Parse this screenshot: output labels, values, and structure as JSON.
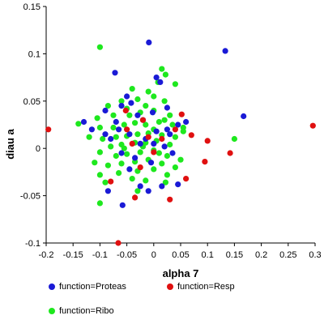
{
  "chart_data": {
    "type": "scatter",
    "xlabel": "alpha 7",
    "ylabel": "diau a",
    "xlim": [
      -0.2,
      0.3
    ],
    "ylim": [
      -0.1,
      0.15
    ],
    "xticks": [
      "-0.2",
      "-0.15",
      "-0.1",
      "-0.05",
      "0",
      "0.05",
      "0.1",
      "0.15",
      "0.2",
      "0.25",
      "0.3"
    ],
    "yticks": [
      "-0.1",
      "-0.05",
      "0",
      "0.05",
      "0.1",
      "0.15"
    ],
    "grid": false,
    "legend_position": "bottom",
    "series": [
      {
        "name": "function=Proteas",
        "color": "#1a1ad6",
        "points": [
          [
            -0.009,
            0.112
          ],
          [
            0.133,
            0.103
          ],
          [
            -0.072,
            0.08
          ],
          [
            -0.05,
            0.055
          ],
          [
            -0.06,
            0.045
          ],
          [
            -0.042,
            0.048
          ],
          [
            -0.09,
            0.04
          ],
          [
            0.005,
            0.075
          ],
          [
            0.012,
            0.07
          ],
          [
            0.025,
            0.043
          ],
          [
            -0.03,
            0.035
          ],
          [
            -0.002,
            0.038
          ],
          [
            0.167,
            0.034
          ],
          [
            -0.13,
            0.028
          ],
          [
            -0.115,
            0.02
          ],
          [
            -0.07,
            0.028
          ],
          [
            -0.02,
            0.03
          ],
          [
            0.025,
            0.02
          ],
          [
            0.045,
            0.025
          ],
          [
            0.06,
            0.028
          ],
          [
            -0.09,
            0.015
          ],
          [
            -0.065,
            0.02
          ],
          [
            -0.045,
            0.015
          ],
          [
            -0.015,
            0.01
          ],
          [
            0.005,
            0.018
          ],
          [
            0.03,
            0.015
          ],
          [
            -0.08,
            0.01
          ],
          [
            -0.025,
            0.005
          ],
          [
            0.02,
            0.002
          ],
          [
            -0.06,
            -0.005
          ],
          [
            -0.035,
            -0.01
          ],
          [
            -0.005,
            -0.015
          ],
          [
            0.035,
            -0.005
          ],
          [
            -0.045,
            -0.022
          ],
          [
            -0.085,
            -0.045
          ],
          [
            -0.025,
            -0.04
          ],
          [
            -0.01,
            -0.045
          ],
          [
            0.015,
            -0.04
          ],
          [
            0.045,
            -0.038
          ],
          [
            -0.058,
            -0.06
          ],
          [
            0.0,
            0.005
          ]
        ]
      },
      {
        "name": "function=Resp",
        "color": "#e01010",
        "points": [
          [
            -0.196,
            0.02
          ],
          [
            0.296,
            0.024
          ],
          [
            -0.052,
            0.04
          ],
          [
            0.07,
            0.014
          ],
          [
            0.1,
            0.008
          ],
          [
            -0.02,
            0.03
          ],
          [
            0.052,
            0.036
          ],
          [
            0.04,
            0.02
          ],
          [
            -0.01,
            0.012
          ],
          [
            0.015,
            0.01
          ],
          [
            -0.04,
            0.005
          ],
          [
            0.142,
            -0.005
          ],
          [
            0.095,
            -0.014
          ],
          [
            -0.08,
            -0.035
          ],
          [
            0.06,
            -0.032
          ],
          [
            -0.035,
            -0.052
          ],
          [
            0.03,
            -0.054
          ],
          [
            -0.066,
            -0.1
          ],
          [
            -0.05,
            0.02
          ],
          [
            0.0,
            -0.004
          ],
          [
            -0.025,
            -0.02
          ]
        ]
      },
      {
        "name": "function=Ribo",
        "color": "#1ee81e",
        "points": [
          [
            -0.1,
            0.107
          ],
          [
            0.015,
            0.084
          ],
          [
            0.022,
            0.078
          ],
          [
            0.04,
            0.068
          ],
          [
            0.008,
            0.07
          ],
          [
            -0.01,
            0.06
          ],
          [
            -0.04,
            0.063
          ],
          [
            -0.06,
            0.05
          ],
          [
            -0.03,
            0.052
          ],
          [
            0.0,
            0.055
          ],
          [
            -0.085,
            0.045
          ],
          [
            -0.05,
            0.042
          ],
          [
            -0.015,
            0.045
          ],
          [
            0.02,
            0.05
          ],
          [
            -0.14,
            0.026
          ],
          [
            -0.105,
            0.032
          ],
          [
            -0.075,
            0.035
          ],
          [
            -0.045,
            0.035
          ],
          [
            -0.025,
            0.038
          ],
          [
            0.0,
            0.04
          ],
          [
            0.03,
            0.035
          ],
          [
            -0.1,
            0.022
          ],
          [
            -0.075,
            0.022
          ],
          [
            -0.055,
            0.025
          ],
          [
            -0.035,
            0.027
          ],
          [
            -0.015,
            0.025
          ],
          [
            0.01,
            0.028
          ],
          [
            0.035,
            0.025
          ],
          [
            0.055,
            0.022
          ],
          [
            -0.12,
            0.012
          ],
          [
            -0.095,
            0.01
          ],
          [
            -0.07,
            0.012
          ],
          [
            -0.05,
            0.013
          ],
          [
            -0.03,
            0.015
          ],
          [
            -0.01,
            0.016
          ],
          [
            0.015,
            0.014
          ],
          [
            0.04,
            0.012
          ],
          [
            -0.08,
            0.002
          ],
          [
            -0.06,
            0.004
          ],
          [
            -0.035,
            0.006
          ],
          [
            -0.015,
            0.006
          ],
          [
            0.005,
            0.008
          ],
          [
            0.03,
            0.004
          ],
          [
            -0.1,
            -0.004
          ],
          [
            -0.07,
            -0.008
          ],
          [
            -0.05,
            -0.006
          ],
          [
            -0.025,
            -0.004
          ],
          [
            0.0,
            -0.002
          ],
          [
            0.025,
            -0.008
          ],
          [
            0.05,
            -0.012
          ],
          [
            -0.11,
            -0.015
          ],
          [
            -0.085,
            -0.018
          ],
          [
            -0.06,
            -0.016
          ],
          [
            -0.035,
            -0.014
          ],
          [
            -0.01,
            -0.012
          ],
          [
            0.015,
            -0.016
          ],
          [
            0.04,
            -0.02
          ],
          [
            -0.1,
            -0.028
          ],
          [
            -0.065,
            -0.026
          ],
          [
            -0.03,
            -0.024
          ],
          [
            0.0,
            -0.022
          ],
          [
            0.025,
            -0.028
          ],
          [
            -0.09,
            -0.036
          ],
          [
            -0.04,
            -0.032
          ],
          [
            -0.015,
            -0.034
          ],
          [
            0.022,
            -0.036
          ],
          [
            -0.03,
            -0.045
          ],
          [
            -0.1,
            -0.058
          ],
          [
            0.15,
            0.01
          ],
          [
            0.055,
            0.018
          ],
          [
            0.0,
            0.02
          ],
          [
            -0.02,
            0.002
          ],
          [
            0.01,
            -0.005
          ],
          [
            -0.055,
            0.0
          ],
          [
            0.02,
            0.03
          ]
        ]
      }
    ]
  }
}
